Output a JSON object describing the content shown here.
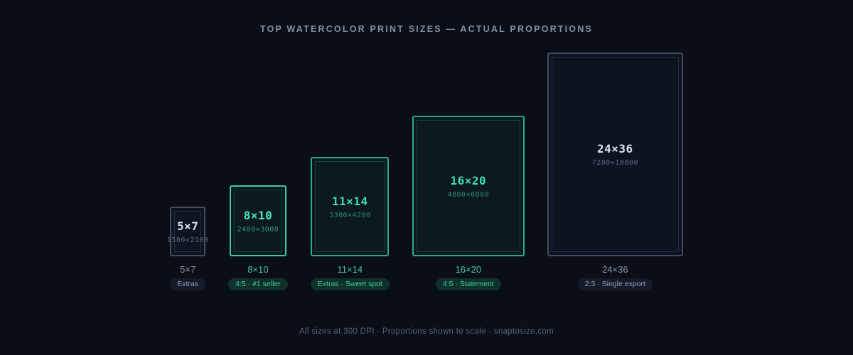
{
  "title": "TOP WATERCOLOR PRINT SIZES — ACTUAL PROPORTIONS",
  "footer": "All sizes at 300 DPI · Proportions shown to scale · snaptosize.com",
  "colors": {
    "background": "#0a0e17",
    "accent": "#3fd6ab",
    "accent_strong": "#4ae9b6",
    "muted_border": "#434b5c",
    "muted_text": "#8d97aa",
    "bright_text": "#dce2ec",
    "title_text": "#8591a4",
    "footer_text": "#596477"
  },
  "chart_data": {
    "type": "bar",
    "title": "TOP WATERCOLOR PRINT SIZES — ACTUAL PROPORTIONS",
    "note": "All sizes at 300 DPI · Proportions shown to scale · snaptosize.com",
    "dpi": 300,
    "unit": "inches",
    "layout": "rectangles drawn to scale, bottom-aligned, smallest to largest left to right",
    "categories": [
      "5×7",
      "8×10",
      "11×14",
      "16×20",
      "24×36"
    ],
    "series": [
      {
        "name": "width_in",
        "values": [
          5,
          8,
          11,
          16,
          24
        ]
      },
      {
        "name": "height_in",
        "values": [
          7,
          10,
          14,
          20,
          36
        ]
      },
      {
        "name": "pixel_width",
        "values": [
          1500,
          2400,
          3300,
          4800,
          7200
        ]
      },
      {
        "name": "pixel_height",
        "values": [
          2100,
          3000,
          4200,
          6000,
          10800
        ]
      }
    ],
    "sizes": [
      {
        "name": "5×7",
        "pixels": "1500×2100",
        "label": "5×7",
        "tag": "Extras",
        "highlighted": false
      },
      {
        "name": "8×10",
        "pixels": "2400×3000",
        "label": "8×10",
        "tag": "4:5 · #1 seller",
        "highlighted": true
      },
      {
        "name": "11×14",
        "pixels": "3300×4200",
        "label": "11×14",
        "tag": "Extras · Sweet spot",
        "highlighted": true
      },
      {
        "name": "16×20",
        "pixels": "4800×6000",
        "label": "16×20",
        "tag": "4:5 · Statement",
        "highlighted": true
      },
      {
        "name": "24×36",
        "pixels": "7200×10800",
        "label": "24×36",
        "tag": "2:3 · Single export",
        "highlighted": false
      }
    ]
  }
}
